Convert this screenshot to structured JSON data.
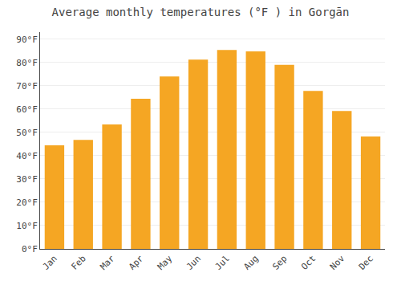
{
  "chart_data": {
    "type": "bar",
    "title": "Average monthly temperatures (°F ) in Gorgān",
    "categories": [
      "Jan",
      "Feb",
      "Mar",
      "Apr",
      "May",
      "Jun",
      "Jul",
      "Aug",
      "Sep",
      "Oct",
      "Nov",
      "Dec"
    ],
    "values": [
      44.4,
      46.8,
      53.4,
      64.4,
      74.0,
      81.2,
      85.3,
      84.7,
      79.0,
      67.8,
      59.2,
      48.2
    ],
    "color": "#F5A623",
    "ylim": [
      0,
      93
    ],
    "yticks": [
      {
        "value": 0,
        "label": "0°F"
      },
      {
        "value": 10,
        "label": "10°F"
      },
      {
        "value": 20,
        "label": "20°F"
      },
      {
        "value": 30,
        "label": "30°F"
      },
      {
        "value": 40,
        "label": "40°F"
      },
      {
        "value": 50,
        "label": "50°F"
      },
      {
        "value": 60,
        "label": "60°F"
      },
      {
        "value": 70,
        "label": "70°F"
      },
      {
        "value": 80,
        "label": "80°F"
      },
      {
        "value": 90,
        "label": "90°F"
      }
    ],
    "grid": true
  }
}
